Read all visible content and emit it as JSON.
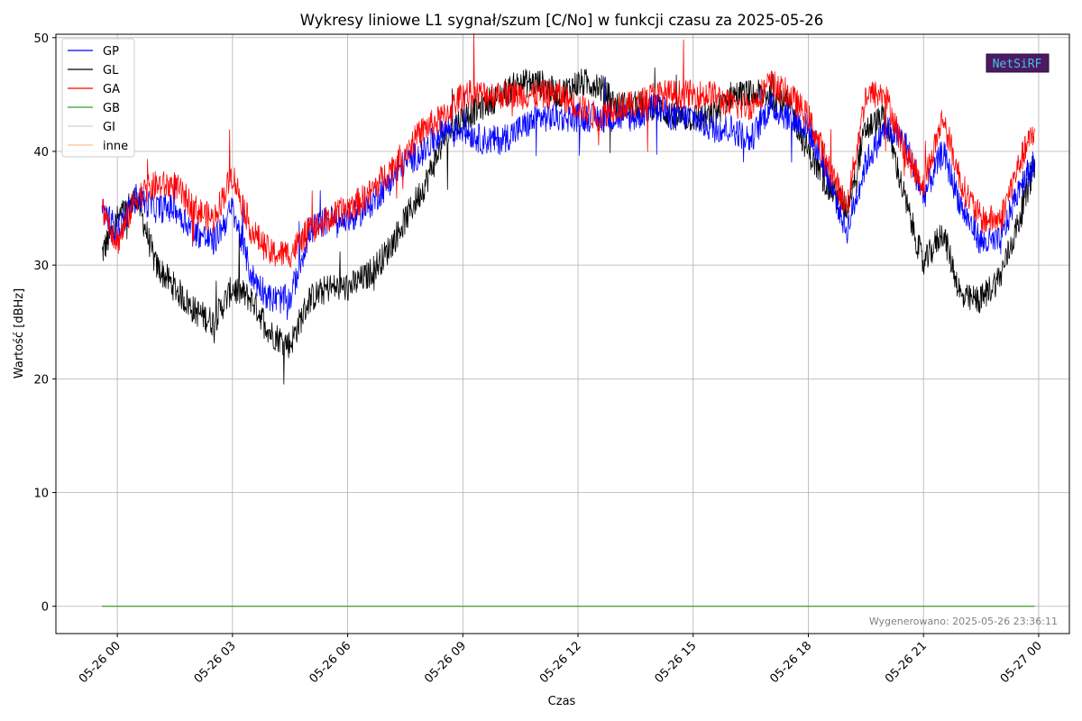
{
  "chart_data": {
    "type": "line",
    "title": "Wykresy liniowe L1 sygnał/szum [C/No] w funkcji czasu za 2025-05-26",
    "xlabel": "Czas",
    "ylabel": "Wartość [dBHz]",
    "ylim": [
      -2.4,
      50.3
    ],
    "xlim_hours": [
      -1.6,
      24.8
    ],
    "yticks": [
      0,
      10,
      20,
      30,
      40,
      50
    ],
    "ytick_labels": [
      "0",
      "10",
      "20",
      "30",
      "40",
      "50"
    ],
    "xticks_hours": [
      0,
      3,
      6,
      9,
      12,
      15,
      18,
      21,
      24
    ],
    "xtick_labels": [
      "05-26 00",
      "05-26 03",
      "05-26 06",
      "05-26 09",
      "05-26 12",
      "05-26 15",
      "05-26 18",
      "05-26 21",
      "05-27 00"
    ],
    "grid": true,
    "legend_position": "top-left",
    "series": [
      {
        "name": "GP",
        "color": "#0000ff",
        "x": [
          -0.4,
          0.0,
          0.5,
          1.0,
          1.5,
          2.0,
          2.5,
          3.0,
          3.5,
          4.0,
          4.5,
          5.0,
          5.5,
          6.0,
          6.5,
          7.0,
          7.5,
          8.0,
          8.5,
          9.0,
          9.5,
          10.0,
          10.5,
          11.0,
          11.5,
          12.0,
          12.5,
          13.0,
          13.5,
          14.0,
          14.5,
          15.0,
          15.5,
          16.0,
          16.5,
          17.0,
          17.5,
          18.0,
          18.5,
          19.0,
          19.5,
          20.0,
          20.5,
          21.0,
          21.5,
          22.0,
          22.5,
          23.0,
          23.5,
          23.9
        ],
        "y": [
          35,
          33,
          36,
          35,
          35,
          33,
          32,
          35,
          29,
          27,
          27,
          33,
          34,
          34,
          35,
          37,
          39,
          40,
          42,
          42,
          41,
          41,
          42,
          43,
          43,
          43,
          43,
          43,
          43,
          44,
          43,
          43,
          42,
          42,
          41,
          44,
          43,
          42,
          38,
          33,
          39,
          42,
          41,
          36,
          40,
          35,
          32,
          32,
          37,
          39
        ]
      },
      {
        "name": "GL",
        "color": "#000000",
        "x": [
          -0.4,
          0.0,
          0.5,
          1.0,
          1.5,
          2.0,
          2.5,
          3.0,
          3.5,
          4.0,
          4.5,
          5.0,
          5.5,
          6.0,
          6.5,
          7.0,
          7.5,
          8.0,
          8.5,
          9.0,
          9.5,
          10.0,
          10.5,
          11.0,
          11.5,
          12.0,
          12.5,
          13.0,
          13.5,
          14.0,
          14.5,
          15.0,
          15.5,
          16.0,
          16.5,
          17.0,
          17.5,
          18.0,
          18.5,
          19.0,
          19.5,
          20.0,
          20.5,
          21.0,
          21.5,
          22.0,
          22.5,
          23.0,
          23.5,
          23.9
        ],
        "y": [
          31,
          34,
          36,
          30,
          28,
          26,
          25,
          28,
          27,
          24,
          23,
          27,
          28,
          28,
          29,
          31,
          34,
          37,
          41,
          43,
          44,
          45,
          46,
          46,
          45,
          46,
          46,
          44,
          44,
          44,
          43,
          43,
          43,
          45,
          45,
          45,
          44,
          40,
          37,
          35,
          42,
          43,
          36,
          30,
          33,
          27,
          27,
          29,
          34,
          39
        ]
      },
      {
        "name": "GA",
        "color": "#ff0000",
        "x": [
          -0.4,
          0.0,
          0.5,
          1.0,
          1.5,
          2.0,
          2.5,
          3.0,
          3.5,
          4.0,
          4.5,
          5.0,
          5.5,
          6.0,
          6.5,
          7.0,
          7.5,
          8.0,
          8.5,
          9.0,
          9.5,
          10.0,
          10.5,
          11.0,
          11.5,
          12.0,
          12.5,
          13.0,
          13.5,
          14.0,
          14.5,
          15.0,
          15.5,
          16.0,
          16.5,
          17.0,
          17.5,
          18.0,
          18.5,
          19.0,
          19.5,
          20.0,
          20.5,
          21.0,
          21.5,
          22.0,
          22.5,
          23.0,
          23.5,
          23.9
        ],
        "y": [
          35,
          32,
          36,
          37,
          37,
          35,
          34,
          38,
          33,
          31,
          31,
          33,
          34,
          35,
          36,
          38,
          40,
          42,
          43,
          45,
          45,
          45,
          45,
          45,
          45,
          44,
          43,
          44,
          44,
          45,
          45,
          45,
          45,
          44,
          44,
          46,
          45,
          43,
          39,
          35,
          45,
          45,
          40,
          37,
          43,
          37,
          34,
          34,
          39,
          42
        ]
      },
      {
        "name": "GB",
        "color": "#2ca02c",
        "x": [
          -0.4,
          23.9
        ],
        "y": [
          0,
          0
        ]
      },
      {
        "name": "GI",
        "color": "#c8d2dc",
        "x": [
          -0.4,
          23.9
        ],
        "y": [
          0,
          0
        ]
      },
      {
        "name": "inne",
        "color": "#ffbe8c",
        "x": [
          -0.4,
          23.9
        ],
        "y": [
          0,
          0
        ]
      }
    ],
    "footer_text": "Wygenerowano: 2025-05-26 23:36:11",
    "logo_text": "NetSiRF"
  }
}
